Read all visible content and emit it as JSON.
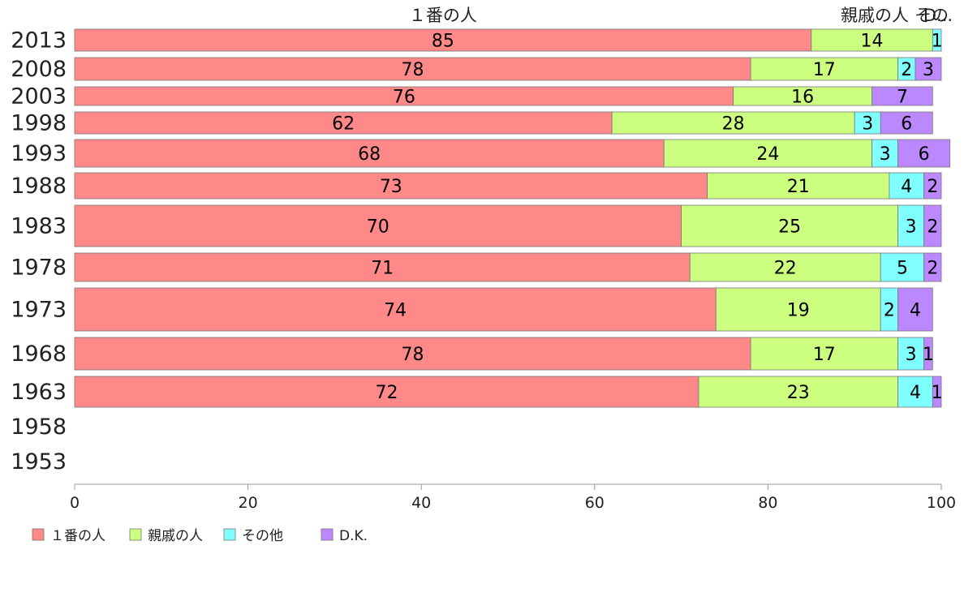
{
  "chart_data": {
    "type": "bar",
    "orientation": "horizontal",
    "stacked": true,
    "categories": [
      "2013",
      "2008",
      "2003",
      "1998",
      "1993",
      "1988",
      "1983",
      "1978",
      "1973",
      "1968",
      "1963",
      "1958",
      "1953"
    ],
    "series": [
      {
        "name": "１番の人",
        "color": "#ff8888",
        "values": [
          85,
          78,
          76,
          62,
          68,
          73,
          70,
          71,
          74,
          78,
          72,
          null,
          null
        ]
      },
      {
        "name": "親戚の人",
        "color": "#ccff80",
        "values": [
          14,
          17,
          16,
          28,
          24,
          21,
          25,
          22,
          19,
          17,
          23,
          null,
          null
        ]
      },
      {
        "name": "その他",
        "color": "#80ffff",
        "values": [
          1,
          2,
          0,
          3,
          3,
          4,
          3,
          5,
          2,
          3,
          4,
          null,
          null
        ]
      },
      {
        "name": "D.K.",
        "color": "#bb88ff",
        "values": [
          0,
          3,
          7,
          6,
          6,
          2,
          2,
          2,
          4,
          1,
          1,
          null,
          null
        ]
      }
    ],
    "x_ticks": [
      "0",
      "20",
      "40",
      "60",
      "80",
      "100"
    ],
    "xlim": [
      0,
      100
    ],
    "top_labels": [
      "１番の人",
      "親戚の人",
      "その他",
      "D.K."
    ],
    "top_labels_display": [
      "１番の人",
      "親戚の人",
      "その",
      "D..."
    ],
    "legend_position": "bottom-left",
    "grid": false
  }
}
